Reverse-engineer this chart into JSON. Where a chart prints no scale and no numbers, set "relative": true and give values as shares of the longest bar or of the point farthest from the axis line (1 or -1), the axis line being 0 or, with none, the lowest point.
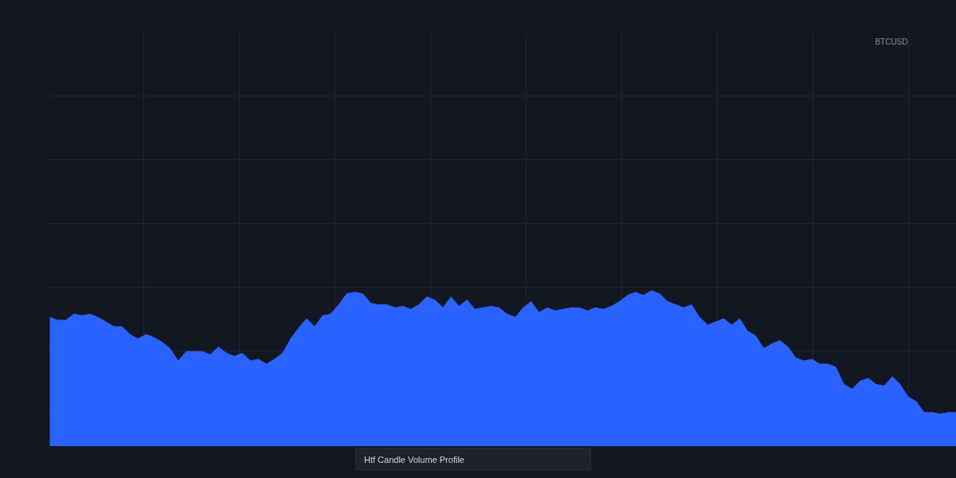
{
  "chart_data": {
    "type": "area",
    "title": "BTCUSD",
    "categories": [
      null,
      null,
      null,
      null,
      null,
      null,
      null,
      null,
      null,
      null,
      null,
      null,
      null,
      null,
      null,
      null,
      null,
      null,
      null,
      null,
      null,
      null,
      null,
      null,
      null,
      null,
      null,
      null,
      null,
      null,
      null,
      null,
      null,
      null,
      null,
      null,
      null,
      null,
      null,
      null,
      null,
      null,
      null,
      null,
      null,
      null,
      null,
      null,
      null,
      null,
      null,
      null,
      null,
      null,
      null,
      null,
      null,
      null,
      null,
      null,
      null,
      null,
      null,
      null,
      null,
      null,
      null,
      null,
      null,
      null,
      null,
      null,
      null,
      null,
      null,
      null,
      null,
      null,
      null,
      null,
      null,
      null,
      null,
      null,
      null,
      null,
      null,
      null,
      null,
      null,
      null,
      null,
      null,
      null,
      null,
      null,
      null,
      null,
      null,
      null,
      null,
      null,
      null,
      null,
      null,
      null,
      null,
      null,
      null,
      null,
      null,
      null,
      null,
      null
    ],
    "values": [
      0.83,
      0.81,
      0.81,
      0.85,
      0.84,
      0.85,
      0.83,
      0.8,
      0.77,
      0.77,
      0.72,
      0.69,
      0.72,
      0.7,
      0.67,
      0.63,
      0.55,
      0.61,
      0.61,
      0.61,
      0.59,
      0.64,
      0.6,
      0.58,
      0.6,
      0.55,
      0.56,
      0.53,
      0.56,
      0.6,
      0.69,
      0.76,
      0.82,
      0.77,
      0.84,
      0.85,
      0.91,
      0.98,
      0.99,
      0.98,
      0.92,
      0.91,
      0.91,
      0.89,
      0.9,
      0.88,
      0.91,
      0.96,
      0.94,
      0.89,
      0.96,
      0.9,
      0.94,
      0.88,
      0.89,
      0.9,
      0.89,
      0.85,
      0.83,
      0.89,
      0.93,
      0.86,
      0.89,
      0.87,
      0.88,
      0.89,
      0.89,
      0.87,
      0.89,
      0.88,
      0.9,
      0.93,
      0.97,
      0.99,
      0.97,
      1.0,
      0.98,
      0.93,
      0.91,
      0.89,
      0.91,
      0.83,
      0.78,
      0.8,
      0.82,
      0.78,
      0.82,
      0.74,
      0.71,
      0.63,
      0.66,
      0.68,
      0.64,
      0.57,
      0.55,
      0.56,
      0.53,
      0.53,
      0.51,
      0.4,
      0.37,
      0.42,
      0.44,
      0.4,
      0.39,
      0.45,
      0.4,
      0.32,
      0.29,
      0.22,
      0.22,
      0.21,
      0.22,
      0.22
    ],
    "color": "#2962ff",
    "relative": true,
    "grid": true,
    "annotations": [
      "Htf Candle Volume Profile"
    ]
  }
}
